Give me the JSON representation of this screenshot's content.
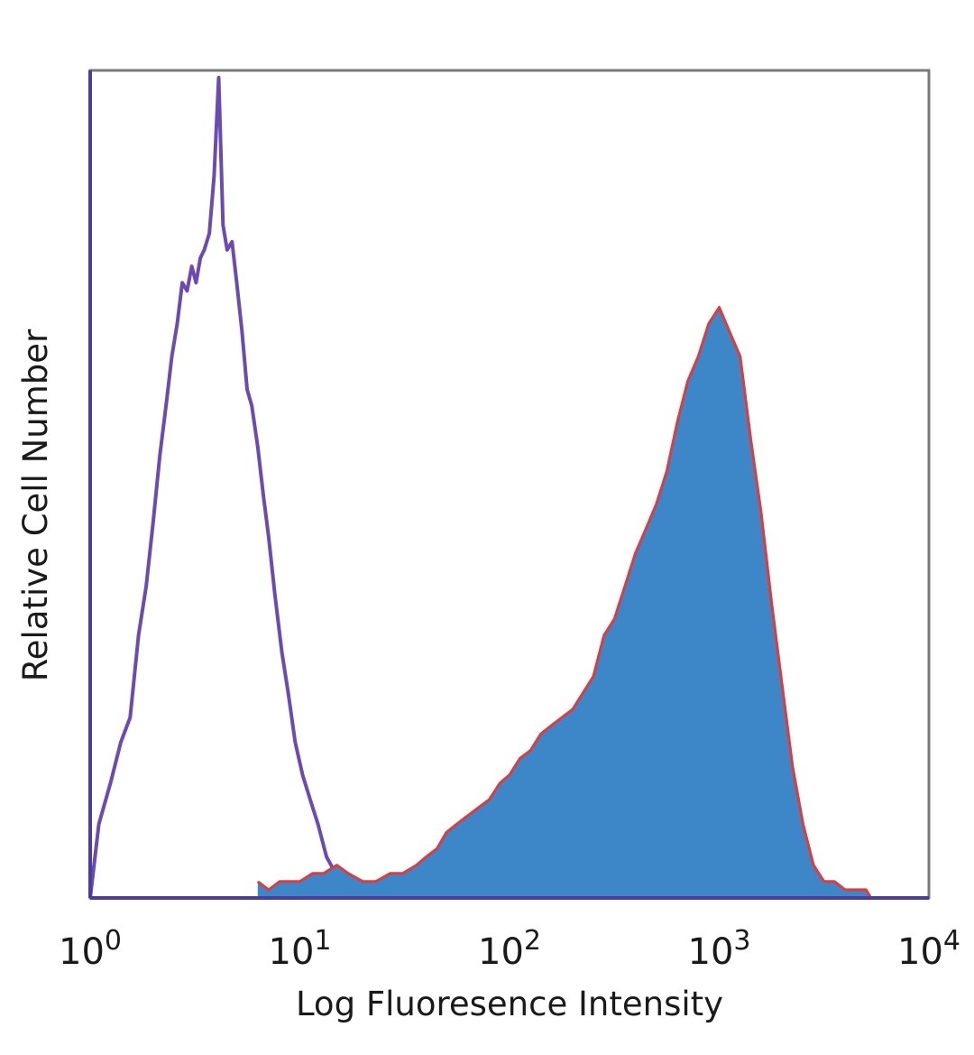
{
  "chart_data": {
    "type": "area",
    "xlabel": "Log Fluoresence Intensity",
    "ylabel": "Relative Cell Number",
    "x_scale": "log",
    "xlim": [
      1,
      10000
    ],
    "ylim": [
      0,
      100
    ],
    "grid": false,
    "x_ticks": [
      {
        "value": 1,
        "base": "10",
        "exp": "0"
      },
      {
        "value": 10,
        "base": "10",
        "exp": "1"
      },
      {
        "value": 100,
        "base": "10",
        "exp": "2"
      },
      {
        "value": 1000,
        "base": "10",
        "exp": "3"
      },
      {
        "value": 10000,
        "base": "10",
        "exp": "4"
      }
    ],
    "series": [
      {
        "style": "line",
        "color": "#6b4bb3",
        "x": [
          1.0,
          1.1,
          1.25,
          1.4,
          1.55,
          1.7,
          1.85,
          2.0,
          2.15,
          2.3,
          2.45,
          2.6,
          2.75,
          2.9,
          3.05,
          3.2,
          3.35,
          3.5,
          3.7,
          3.9,
          4.1,
          4.3,
          4.5,
          4.75,
          5.0,
          5.3,
          5.6,
          5.9,
          6.3,
          6.7,
          7.1,
          7.6,
          8.2,
          8.8,
          9.5,
          10.3,
          11.2,
          12.2,
          13.4,
          14.8,
          16.3,
          18.0,
          20.0
        ],
        "y": [
          0,
          9,
          14,
          19,
          22,
          32,
          38,
          46,
          54,
          60,
          66,
          70,
          75,
          74,
          77,
          75,
          78,
          79,
          81,
          88,
          100,
          82,
          79,
          80,
          75,
          69,
          62,
          60,
          55,
          49,
          44,
          37,
          30,
          25,
          19,
          15,
          12,
          9,
          5,
          3,
          2,
          1,
          0
        ]
      },
      {
        "style": "filled",
        "fill": "#3d87c9",
        "stroke": "#e03a3a",
        "x": [
          6.3,
          7.1,
          8.0,
          9.0,
          10.0,
          11.5,
          13.0,
          15.0,
          17.0,
          20.0,
          23.0,
          27.0,
          31.0,
          36.0,
          40.0,
          45.0,
          50.0,
          56.0,
          63.0,
          71.0,
          80.0,
          90.0,
          100.0,
          112.0,
          126.0,
          141.0,
          158.0,
          178.0,
          200.0,
          224.0,
          251.0,
          282.0,
          316.0,
          355.0,
          398.0,
          447.0,
          501.0,
          562.0,
          631.0,
          708.0,
          794.0,
          891.0,
          1000.0,
          1122.0,
          1259.0,
          1413.0,
          1585.0,
          1778.0,
          1995.0,
          2239.0,
          2512.0,
          2818.0,
          3162.0,
          3548.0,
          3981.0,
          4467.0,
          5012.0,
          5300.0
        ],
        "y": [
          2,
          1,
          2,
          2,
          2,
          3,
          3,
          4,
          3,
          2,
          2,
          3,
          3,
          4,
          5,
          6,
          8,
          9,
          10,
          11,
          12,
          14,
          15,
          17,
          18,
          20,
          21,
          22,
          23,
          25,
          27,
          32,
          34,
          38,
          42,
          45,
          48,
          52,
          58,
          63,
          66,
          70,
          72,
          69,
          66,
          56,
          47,
          36,
          26,
          16,
          9,
          4,
          2,
          2,
          1,
          1,
          1,
          0
        ]
      }
    ]
  }
}
